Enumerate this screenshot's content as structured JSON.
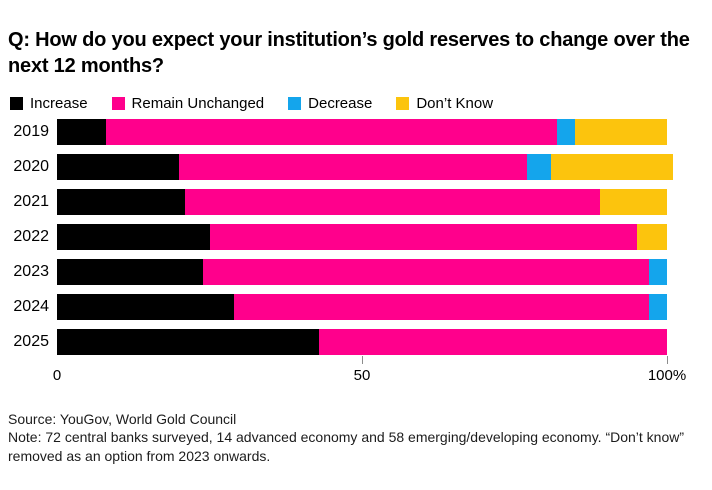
{
  "title": "Q: How do you expect your institution’s gold reserves to change over the next 12 months?",
  "legend": [
    {
      "label": "Increase",
      "color": "#000000"
    },
    {
      "label": "Remain Unchanged",
      "color": "#FF008C"
    },
    {
      "label": "Decrease",
      "color": "#14A5EC"
    },
    {
      "label": "Don’t Know",
      "color": "#FCC40D"
    }
  ],
  "chart_data": {
    "type": "bar",
    "orientation": "horizontal",
    "stacked": true,
    "title": "Q: How do you expect your institution’s gold reserves to change over the next 12 months?",
    "categories": [
      "2019",
      "2020",
      "2021",
      "2022",
      "2023",
      "2024",
      "2025"
    ],
    "series": [
      {
        "name": "Increase",
        "color": "#000000",
        "values": [
          8,
          20,
          21,
          25,
          24,
          29,
          43
        ]
      },
      {
        "name": "Remain Unchanged",
        "color": "#FF008C",
        "values": [
          74,
          57,
          68,
          70,
          73,
          68,
          57
        ]
      },
      {
        "name": "Decrease",
        "color": "#14A5EC",
        "values": [
          3,
          4,
          0,
          0,
          3,
          3,
          0
        ]
      },
      {
        "name": "Don’t Know",
        "color": "#FCC40D",
        "values": [
          15,
          20,
          11,
          5,
          0,
          0,
          0
        ]
      }
    ],
    "unit": "percent",
    "xlim": [
      0,
      100
    ],
    "x_ticks": [
      {
        "value": 0,
        "label": "0",
        "tick_mark": false
      },
      {
        "value": 50,
        "label": "50",
        "tick_mark": true
      },
      {
        "value": 100,
        "label": "100%",
        "tick_mark": true
      }
    ],
    "grid": false,
    "legend_position": "top"
  },
  "footer": {
    "source": "Source: YouGov, World Gold Council",
    "note": "Note: 72 central banks surveyed, 14 advanced economy and 58 emerging/developing economy. “Don’t know” removed as an option from 2023 onwards."
  }
}
